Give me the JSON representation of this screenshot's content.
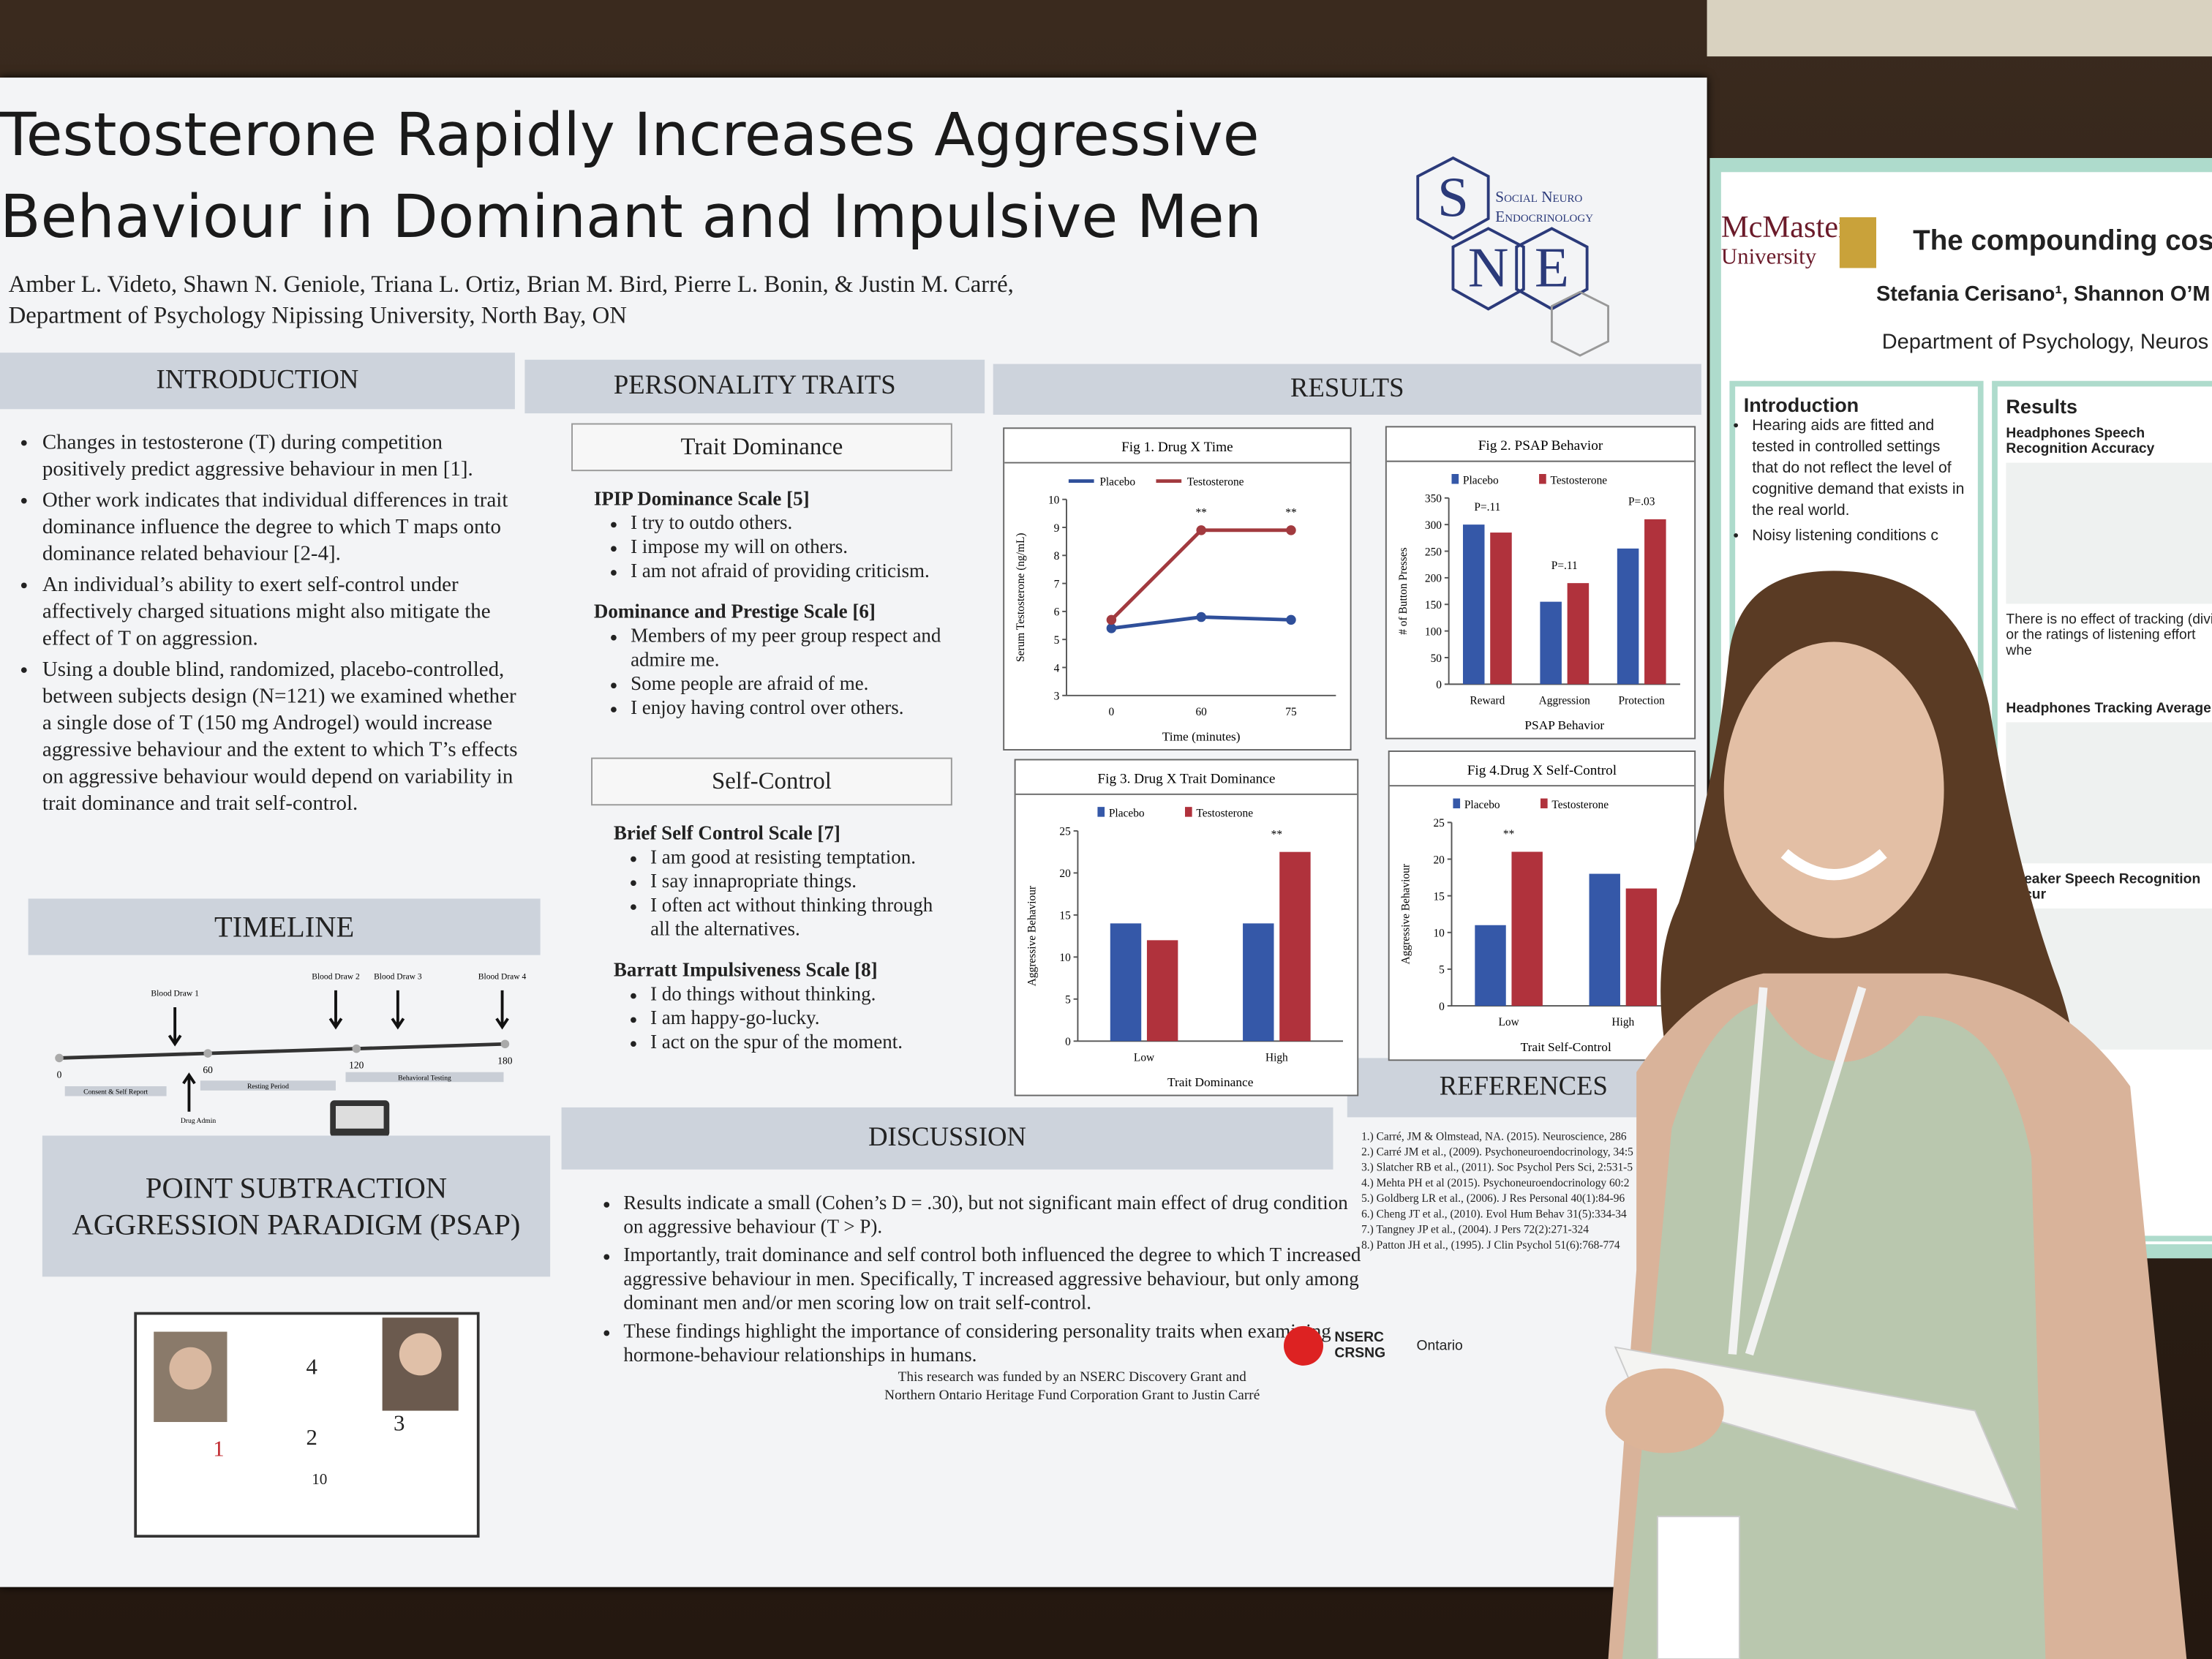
{
  "poster": {
    "title_line1": "Testosterone Rapidly Increases Aggressive",
    "title_line2": "Behaviour in Dominant and Impulsive Men",
    "authors": "Amber L. Videto, Shawn N. Geniole, Triana L. Ortiz, Brian M. Bird, Pierre L. Bonin, & Justin M. Carré,",
    "affiliation": "Department of Psychology Nipissing University, North Bay, ON",
    "logo": {
      "letters": [
        "S",
        "N",
        "E"
      ],
      "name_line1": "Social Neuro",
      "name_line2": "Endocrinology"
    },
    "introduction": {
      "heading": "INTRODUCTION",
      "bullets": [
        "Changes in testosterone (T) during competition positively predict aggressive behaviour in men [1].",
        "Other work indicates that individual differences in trait dominance influence the degree to which T maps onto dominance related behaviour [2-4].",
        "An individual’s ability to exert self-control under affectively charged situations might also mitigate the effect of T on aggression.",
        "Using a double blind, randomized, placebo-controlled, between subjects design (N=121) we examined whether a single dose of T (150 mg Androgel) would increase aggressive behaviour and the extent to which T’s effects on aggressive behaviour would depend on variability in trait dominance and trait self-control."
      ]
    },
    "timeline": {
      "heading": "TIMELINE",
      "draws": [
        "Blood Draw 1",
        "Blood Draw 2",
        "Blood Draw 3",
        "Blood Draw 4"
      ],
      "ticks": [
        0,
        60,
        120,
        180
      ],
      "phases": [
        "Consent & Self Report",
        "Resting Period",
        "Behavioral Testing"
      ],
      "drug": "Drug Admin"
    },
    "psap": {
      "heading": "POINT SUBTRACTION AGGRESSION PARADIGM (PSAP)",
      "numbers": [
        4,
        1,
        2,
        3,
        10
      ]
    },
    "personality": {
      "heading": "PERSONALITY TRAITS",
      "groups": [
        {
          "title": "Trait Dominance",
          "scales": [
            {
              "name": "IPIP Dominance Scale [5]",
              "items": [
                "I try to outdo others.",
                "I impose my will on others.",
                "I am not afraid of providing criticism."
              ]
            },
            {
              "name": "Dominance and Prestige Scale [6]",
              "items": [
                "Members of my peer group respect and admire me.",
                "Some people are afraid of me.",
                "I enjoy having control over others."
              ]
            }
          ]
        },
        {
          "title": "Self-Control",
          "scales": [
            {
              "name": "Brief Self Control Scale [7]",
              "items": [
                "I am good at resisting temptation.",
                "I say innapropriate things.",
                "I often act without thinking through all the alternatives."
              ]
            },
            {
              "name": "Barratt Impulsiveness Scale [8]",
              "items": [
                "I do things without thinking.",
                "I am happy-go-lucky.",
                "I act on the spur of the moment."
              ]
            }
          ]
        }
      ]
    },
    "results": {
      "heading": "RESULTS",
      "figures": [
        {
          "type": "line",
          "title": "Fig 1. Drug X Time",
          "y_label": "Serum Testosterone (ng/mL)",
          "x_label": "Time (minutes)",
          "categories": [
            0,
            60,
            75
          ],
          "ylim": [
            3,
            10
          ],
          "yticks": [
            3,
            4,
            5,
            6,
            7,
            8,
            9,
            10
          ],
          "annotations": [
            null,
            "**",
            "**"
          ],
          "series": [
            {
              "name": "Placebo",
              "color": "#2f4f9a",
              "values": [
                5.4,
                5.8,
                5.7
              ]
            },
            {
              "name": "Testosterone",
              "color": "#a23a3f",
              "values": [
                5.7,
                8.9,
                8.9
              ]
            }
          ]
        },
        {
          "type": "bar",
          "title": "Fig 2. PSAP Behavior",
          "y_label": "# of Button Presses",
          "x_label": "PSAP Behavior",
          "categories": [
            "Reward",
            "Aggression",
            "Protection"
          ],
          "ylim": [
            0,
            350
          ],
          "yticks": [
            0,
            50,
            100,
            150,
            200,
            250,
            300,
            350
          ],
          "annotations": [
            "P=.11",
            "P=.11",
            "P=.03"
          ],
          "series": [
            {
              "name": "Placebo",
              "color": "#3558a8",
              "values": [
                300,
                155,
                255
              ]
            },
            {
              "name": "Testosterone",
              "color": "#b0323c",
              "values": [
                285,
                190,
                310
              ]
            }
          ]
        },
        {
          "type": "bar",
          "title": "Fig 3. Drug X Trait Dominance",
          "y_label": "Aggressive Behaviour",
          "x_label": "Trait Dominance",
          "categories": [
            "Low",
            "High"
          ],
          "ylim": [
            0,
            25
          ],
          "yticks": [
            0,
            5,
            10,
            15,
            20,
            25
          ],
          "annotations": [
            null,
            "**"
          ],
          "series": [
            {
              "name": "Placebo",
              "color": "#3558a8",
              "values": [
                14,
                14
              ]
            },
            {
              "name": "Testosterone",
              "color": "#b0323c",
              "values": [
                12,
                22.5
              ]
            }
          ]
        },
        {
          "type": "bar",
          "title": "Fig 4.Drug X Self-Control",
          "y_label": "Aggressive Behaviour",
          "x_label": "Trait Self-Control",
          "categories": [
            "Low",
            "High"
          ],
          "ylim": [
            0,
            25
          ],
          "yticks": [
            0,
            5,
            10,
            15,
            20,
            25
          ],
          "annotations": [
            "**",
            null
          ],
          "series": [
            {
              "name": "Placebo",
              "color": "#3558a8",
              "values": [
                11,
                18
              ]
            },
            {
              "name": "Testosterone",
              "color": "#b0323c",
              "values": [
                21,
                16
              ]
            }
          ]
        }
      ]
    },
    "discussion": {
      "heading": "DISCUSSION",
      "bullets": [
        "Results indicate a small (Cohen’s D = .30), but not significant main effect of drug condition on aggressive behaviour (T > P).",
        "Importantly, trait dominance and self control both influenced the degree to which T increased aggressive behaviour in men. Specifically, T increased aggressive behaviour, but only among dominant men and/or men scoring low on trait self-control.",
        "These findings highlight the importance of considering personality traits when examining hormone-behaviour relationships in humans."
      ]
    },
    "funding": "This research was funded by an NSERC Discovery Grant and Northern Ontario Heritage Fund Corporation Grant to Justin Carré",
    "references": {
      "heading": "REFERENCES",
      "items": [
        "1.) Carré, JM & Olmstead, NA. (2015). Neuroscience, 286",
        "2.) Carré JM et al., (2009). Psychoneuroendocrinology, 34:5",
        "3.) Slatcher RB et al., (2011). Soc Psychol Pers Sci, 2:531-5",
        "4.) Mehta PH et al (2015). Psychoneuroendocrinology 60:2",
        "5.) Goldberg LR et al., (2006). J Res Personal 40(1):84-96",
        "6.) Cheng JT et al., (2010). Evol Hum Behav 31(5):334-34",
        "7.) Tangney JP et al., (2004). J Pers 72(2):271-324",
        "8.) Patton JH et al., (1995). J Clin Psychol 51(6):768-774"
      ]
    },
    "sponsors": [
      "NSERC",
      "CRSNG",
      "Ontario"
    ]
  },
  "neighbor_poster": {
    "logo_line1": "McMaster",
    "logo_line2": "University",
    "title": "The compounding cos",
    "authors": "Stefania Cerisano¹, Shannon O’M",
    "department": "Department of Psychology, Neuros",
    "introduction": {
      "heading": "Introduction",
      "bullets": [
        "Hearing aids are fitted and tested in controlled settings that do not reflect the level of cognitive demand that exists in the real world.",
        "Noisy listening conditions c"
      ]
    },
    "results": {
      "heading": "Results",
      "captions": [
        "Headphones Speech Recognition Accuracy",
        "There is no effect of tracking (divi or the ratings of listening effort whe",
        "Headphones Tracking Average",
        "Speaker Speech Recognition Accur"
      ]
    }
  }
}
